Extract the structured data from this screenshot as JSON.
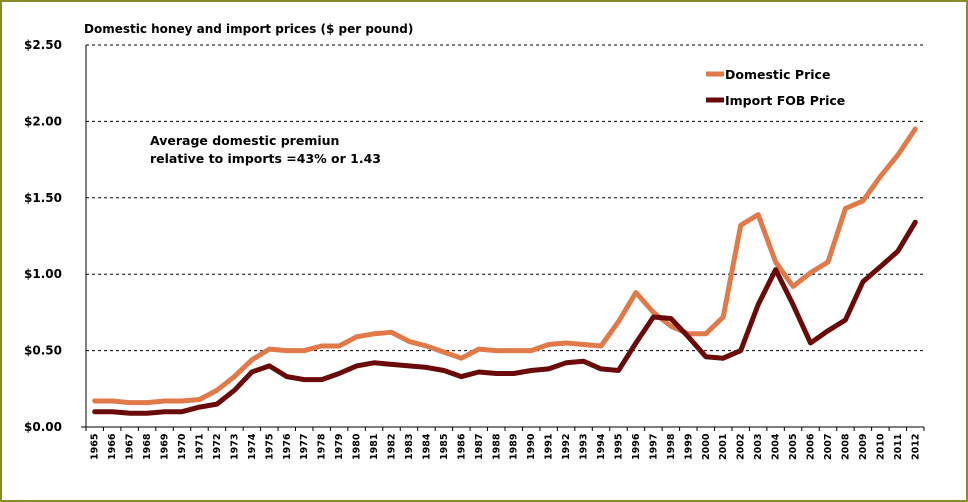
{
  "chart_data": {
    "type": "line",
    "title": "Domestic honey  and import  prices ($ per pound)",
    "annotation": [
      "Average domestic premiun",
      "relative to imports =43% or 1.43"
    ],
    "ylim": [
      0,
      2.5
    ],
    "yticks": [
      "$0.00",
      "$0.50",
      "$1.00",
      "$1.50",
      "$2.00",
      "$2.50"
    ],
    "ytick_values": [
      0,
      0.5,
      1.0,
      1.5,
      2.0,
      2.5
    ],
    "grid": "horizontal dashed",
    "legend_position": "top-right",
    "x": [
      "1965",
      "1966",
      "1967",
      "1968",
      "1969",
      "1970",
      "1971",
      "1972",
      "1973",
      "1974",
      "1975",
      "1976",
      "1977",
      "1978",
      "1979",
      "1980",
      "1981",
      "1982",
      "1983",
      "1984",
      "1985",
      "1986",
      "1987",
      "1988",
      "1989",
      "1990",
      "1991",
      "1992",
      "1993",
      "1994",
      "1995",
      "1996",
      "1997",
      "1998",
      "1999",
      "2000",
      "2001",
      "2002",
      "2003",
      "2004",
      "2005",
      "2006",
      "2007",
      "2008",
      "2009",
      "2010",
      "2011",
      "2012"
    ],
    "series": [
      {
        "name": "Domestic Price",
        "color": "#e07a4a",
        "values": [
          0.17,
          0.17,
          0.16,
          0.16,
          0.17,
          0.17,
          0.18,
          0.24,
          0.33,
          0.44,
          0.51,
          0.5,
          0.5,
          0.53,
          0.53,
          0.59,
          0.61,
          0.62,
          0.56,
          0.53,
          0.49,
          0.45,
          0.51,
          0.5,
          0.5,
          0.5,
          0.54,
          0.55,
          0.54,
          0.53,
          0.69,
          0.88,
          0.75,
          0.66,
          0.61,
          0.61,
          0.72,
          1.32,
          1.39,
          1.08,
          0.92,
          1.01,
          1.08,
          1.43,
          1.48,
          1.64,
          1.78,
          1.95
        ]
      },
      {
        "name": "Import FOB Price",
        "color": "#6b0a0a",
        "values": [
          0.1,
          0.1,
          0.09,
          0.09,
          0.1,
          0.1,
          0.13,
          0.15,
          0.24,
          0.36,
          0.4,
          0.33,
          0.31,
          0.31,
          0.35,
          0.4,
          0.42,
          0.41,
          0.4,
          0.39,
          0.37,
          0.33,
          0.36,
          0.35,
          0.35,
          0.37,
          0.38,
          0.42,
          0.43,
          0.38,
          0.37,
          0.55,
          0.72,
          0.71,
          0.59,
          0.46,
          0.45,
          0.5,
          0.8,
          1.03,
          0.8,
          0.55,
          0.63,
          0.7,
          0.95,
          1.05,
          1.15,
          1.34
        ]
      }
    ]
  }
}
